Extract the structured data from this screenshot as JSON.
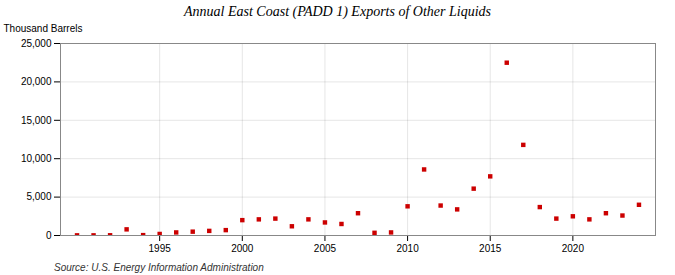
{
  "chart_data": {
    "type": "scatter",
    "title": "Annual East Coast (PADD 1) Exports of Other Liquids",
    "ylabel": "Thousand Barrels",
    "source": "Source: U.S. Energy Information Administration",
    "x": [
      1990,
      1991,
      1992,
      1993,
      1994,
      1995,
      1996,
      1997,
      1998,
      1999,
      2000,
      2001,
      2002,
      2003,
      2004,
      2005,
      2006,
      2007,
      2008,
      2009,
      2010,
      2011,
      2012,
      2013,
      2014,
      2015,
      2016,
      2017,
      2018,
      2019,
      2020,
      2021,
      2022,
      2023,
      2024
    ],
    "values": [
      20,
      20,
      30,
      800,
      50,
      200,
      400,
      500,
      600,
      700,
      2000,
      2100,
      2200,
      1200,
      2100,
      1700,
      1500,
      2900,
      350,
      400,
      3800,
      8600,
      3900,
      3400,
      6100,
      7700,
      22500,
      11800,
      3700,
      2200,
      2500,
      2100,
      2900,
      2600,
      4000
    ],
    "color": "#cc0000",
    "marker": "square",
    "xlim": [
      1989,
      2025
    ],
    "xticks": [
      1995,
      2000,
      2005,
      2010,
      2015,
      2020
    ],
    "ylim": [
      0,
      25000
    ],
    "yticks": [
      0,
      {
        "value": 5000,
        "label": "5,000"
      },
      {
        "value": 10000,
        "label": "10,000"
      },
      {
        "value": 15000,
        "label": "15,000"
      },
      {
        "value": 20000,
        "label": "20,000"
      },
      {
        "value": 25000,
        "label": "25,000"
      }
    ],
    "grid": true
  }
}
